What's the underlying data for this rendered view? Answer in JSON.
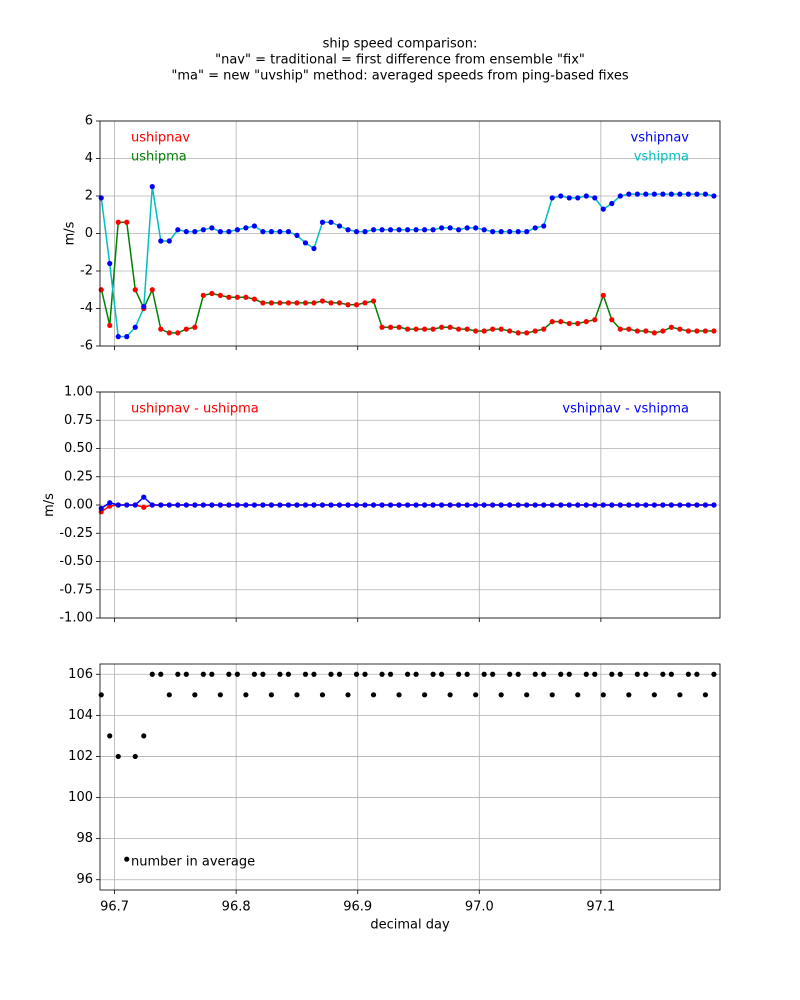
{
  "chart_data": [
    {
      "type": "line",
      "title": [
        "ship speed comparison:",
        "\"nav\" = traditional = first difference from ensemble \"fix\"",
        "\"ma\" = new \"uvship\" method: averaged speeds from ping-based fixes"
      ],
      "ylabel": "m/s",
      "grid": true,
      "legend": true,
      "xlim": [
        96.688,
        97.198
      ],
      "xticks": [
        96.7,
        96.8,
        96.9,
        97,
        97.1
      ],
      "ylim": [
        -6,
        6
      ],
      "yticks": [
        -6,
        -4,
        -2,
        0,
        2,
        4,
        6
      ],
      "x": [
        96.689,
        96.696,
        96.703,
        96.71,
        96.717,
        96.724,
        96.731,
        96.738,
        96.745,
        96.752,
        96.759,
        96.766,
        96.773,
        96.78,
        96.787,
        96.794,
        96.801,
        96.808,
        96.815,
        96.822,
        96.829,
        96.836,
        96.843,
        96.85,
        96.857,
        96.864,
        96.871,
        96.878,
        96.885,
        96.892,
        96.899,
        96.906,
        96.913,
        96.92,
        96.927,
        96.934,
        96.941,
        96.948,
        96.955,
        96.962,
        96.969,
        96.976,
        96.983,
        96.99,
        96.997,
        97.004,
        97.011,
        97.018,
        97.025,
        97.032,
        97.039,
        97.046,
        97.053,
        97.06,
        97.067,
        97.074,
        97.081,
        97.088,
        97.095,
        97.102,
        97.109,
        97.116,
        97.123,
        97.13,
        97.137,
        97.144,
        97.151,
        97.158,
        97.165,
        97.172,
        97.179,
        97.186,
        97.193
      ],
      "series": [
        {
          "name": "ushipnav",
          "color": "#ff0000",
          "marker": true,
          "line": false,
          "values": [
            -3.0,
            -4.9,
            0.6,
            0.6,
            -3.0,
            -4.0,
            -3.0,
            -5.1,
            -5.3,
            -5.3,
            -5.1,
            -5.0,
            -3.3,
            -3.2,
            -3.3,
            -3.4,
            -3.4,
            -3.4,
            -3.5,
            -3.7,
            -3.7,
            -3.7,
            -3.7,
            -3.7,
            -3.7,
            -3.7,
            -3.6,
            -3.7,
            -3.7,
            -3.8,
            -3.8,
            -3.7,
            -3.6,
            -5.0,
            -5.0,
            -5.0,
            -5.1,
            -5.1,
            -5.1,
            -5.1,
            -5.0,
            -5.0,
            -5.1,
            -5.1,
            -5.2,
            -5.2,
            -5.1,
            -5.1,
            -5.2,
            -5.3,
            -5.3,
            -5.2,
            -5.1,
            -4.7,
            -4.7,
            -4.8,
            -4.8,
            -4.7,
            -4.6,
            -3.3,
            -4.6,
            -5.1,
            -5.1,
            -5.2,
            -5.2,
            -5.3,
            -5.2,
            -5.0,
            -5.1,
            -5.2,
            -5.2,
            -5.2,
            -5.2
          ]
        },
        {
          "name": "ushipma",
          "color": "#008000",
          "marker": false,
          "line": true,
          "values": [
            -2.94,
            -4.89,
            0.6,
            0.6,
            -3.0,
            -3.98,
            -3.0,
            -5.1,
            -5.3,
            -5.3,
            -5.1,
            -5.0,
            -3.3,
            -3.2,
            -3.3,
            -3.4,
            -3.4,
            -3.4,
            -3.5,
            -3.7,
            -3.7,
            -3.7,
            -3.7,
            -3.7,
            -3.7,
            -3.7,
            -3.6,
            -3.7,
            -3.7,
            -3.8,
            -3.8,
            -3.7,
            -3.6,
            -5.0,
            -5.0,
            -5.0,
            -5.1,
            -5.1,
            -5.1,
            -5.1,
            -5.0,
            -5.0,
            -5.1,
            -5.1,
            -5.2,
            -5.2,
            -5.1,
            -5.1,
            -5.2,
            -5.3,
            -5.3,
            -5.2,
            -5.1,
            -4.7,
            -4.7,
            -4.8,
            -4.8,
            -4.7,
            -4.6,
            -3.3,
            -4.6,
            -5.1,
            -5.1,
            -5.2,
            -5.2,
            -5.3,
            -5.2,
            -5.0,
            -5.1,
            -5.2,
            -5.2,
            -5.2,
            -5.2
          ]
        },
        {
          "name": "vshipnav",
          "color": "#0000ff",
          "marker": true,
          "line": false,
          "values": [
            1.9,
            -1.6,
            -5.5,
            -5.5,
            -5.0,
            -3.9,
            2.5,
            -0.4,
            -0.4,
            0.2,
            0.1,
            0.1,
            0.2,
            0.3,
            0.1,
            0.1,
            0.2,
            0.3,
            0.4,
            0.1,
            0.1,
            0.1,
            0.1,
            -0.1,
            -0.5,
            -0.8,
            0.6,
            0.6,
            0.4,
            0.2,
            0.1,
            0.1,
            0.2,
            0.2,
            0.2,
            0.2,
            0.2,
            0.2,
            0.2,
            0.2,
            0.3,
            0.3,
            0.2,
            0.3,
            0.3,
            0.2,
            0.1,
            0.1,
            0.1,
            0.1,
            0.1,
            0.3,
            0.4,
            1.9,
            2.0,
            1.9,
            1.9,
            2.0,
            1.9,
            1.3,
            1.6,
            2.0,
            2.1,
            2.1,
            2.1,
            2.1,
            2.1,
            2.1,
            2.1,
            2.1,
            2.1,
            2.1,
            2.0
          ]
        },
        {
          "name": "vshipma",
          "color": "#00bfbf",
          "marker": false,
          "line": true,
          "values": [
            1.93,
            -1.62,
            -5.5,
            -5.5,
            -5.0,
            -3.97,
            2.5,
            -0.4,
            -0.4,
            0.2,
            0.1,
            0.1,
            0.2,
            0.3,
            0.1,
            0.1,
            0.2,
            0.3,
            0.4,
            0.1,
            0.1,
            0.1,
            0.1,
            -0.1,
            -0.5,
            -0.8,
            0.6,
            0.6,
            0.4,
            0.2,
            0.1,
            0.1,
            0.2,
            0.2,
            0.2,
            0.2,
            0.2,
            0.2,
            0.2,
            0.2,
            0.3,
            0.3,
            0.2,
            0.3,
            0.3,
            0.2,
            0.1,
            0.1,
            0.1,
            0.1,
            0.1,
            0.3,
            0.4,
            1.9,
            2.0,
            1.9,
            1.9,
            2.0,
            1.9,
            1.3,
            1.6,
            2.0,
            2.1,
            2.1,
            2.1,
            2.1,
            2.1,
            2.1,
            2.1,
            2.1,
            2.1,
            2.1,
            2.0
          ]
        }
      ]
    },
    {
      "type": "line",
      "ylabel": "m/s",
      "grid": true,
      "legend": true,
      "xlim": [
        96.688,
        97.198
      ],
      "xticks": [
        96.7,
        96.8,
        96.9,
        97,
        97.1
      ],
      "ylim": [
        -1,
        1
      ],
      "yticks": [
        {
          "value": -1,
          "label": "-1.00"
        },
        {
          "value": -0.75,
          "label": "-0.75"
        },
        {
          "value": -0.5,
          "label": "-0.50"
        },
        {
          "value": -0.25,
          "label": "-0.25"
        },
        {
          "value": 0,
          "label": "0.00"
        },
        {
          "value": 0.25,
          "label": "0.25"
        },
        {
          "value": 0.5,
          "label": "0.50"
        },
        {
          "value": 0.75,
          "label": "0.75"
        },
        {
          "value": 1,
          "label": "1.00"
        }
      ],
      "x": [
        96.689,
        96.696,
        96.703,
        96.71,
        96.717,
        96.724,
        96.731,
        96.738,
        96.745,
        96.752,
        96.759,
        96.766,
        96.773,
        96.78,
        96.787,
        96.794,
        96.801,
        96.808,
        96.815,
        96.822,
        96.829,
        96.836,
        96.843,
        96.85,
        96.857,
        96.864,
        96.871,
        96.878,
        96.885,
        96.892,
        96.899,
        96.906,
        96.913,
        96.92,
        96.927,
        96.934,
        96.941,
        96.948,
        96.955,
        96.962,
        96.969,
        96.976,
        96.983,
        96.99,
        96.997,
        97.004,
        97.011,
        97.018,
        97.025,
        97.032,
        97.039,
        97.046,
        97.053,
        97.06,
        97.067,
        97.074,
        97.081,
        97.088,
        97.095,
        97.102,
        97.109,
        97.116,
        97.123,
        97.13,
        97.137,
        97.144,
        97.151,
        97.158,
        97.165,
        97.172,
        97.179,
        97.186,
        97.193
      ],
      "series": [
        {
          "name": "ushipnav - ushipma",
          "color": "#ff0000",
          "marker": true,
          "line": true,
          "values": [
            -0.06,
            -0.01,
            0,
            0,
            0,
            -0.02,
            0,
            0,
            0,
            0,
            0,
            0,
            0,
            0,
            0,
            0,
            0,
            0,
            0,
            0,
            0,
            0,
            0,
            0,
            0,
            0,
            0,
            0,
            0,
            0,
            0,
            0,
            0,
            0,
            0,
            0,
            0,
            0,
            0,
            0,
            0,
            0,
            0,
            0,
            0,
            0,
            0,
            0,
            0,
            0,
            0,
            0,
            0,
            0,
            0,
            0,
            0,
            0,
            0,
            0,
            0,
            0,
            0,
            0,
            0,
            0,
            0,
            0,
            0,
            0,
            0,
            0,
            0
          ]
        },
        {
          "name": "vshipnav - vshipma",
          "color": "#0000ff",
          "marker": true,
          "line": true,
          "values": [
            -0.03,
            0.02,
            0,
            0,
            0,
            0.07,
            0,
            0,
            0,
            0,
            0,
            0,
            0,
            0,
            0,
            0,
            0,
            0,
            0,
            0,
            0,
            0,
            0,
            0,
            0,
            0,
            0,
            0,
            0,
            0,
            0,
            0,
            0,
            0,
            0,
            0,
            0,
            0,
            0,
            0,
            0,
            0,
            0,
            0,
            0,
            0,
            0,
            0,
            0,
            0,
            0,
            0,
            0,
            0,
            0,
            0,
            0,
            0,
            0,
            0,
            0,
            0,
            0,
            0,
            0,
            0,
            0,
            0,
            0,
            0,
            0,
            0,
            0
          ]
        }
      ]
    },
    {
      "type": "line",
      "xlabel": "decimal day",
      "annotation": "number in average",
      "grid": true,
      "legend": false,
      "xlim": [
        96.688,
        97.198
      ],
      "xticks": [
        96.7,
        96.8,
        96.9,
        {
          "value": 97,
          "label": "97.0"
        },
        97.1
      ],
      "ylim": [
        95.5,
        106.5
      ],
      "yticks": [
        96,
        98,
        100,
        102,
        104,
        106
      ],
      "x": [
        96.689,
        96.696,
        96.703,
        96.71,
        96.717,
        96.724,
        96.731,
        96.738,
        96.745,
        96.752,
        96.759,
        96.766,
        96.773,
        96.78,
        96.787,
        96.794,
        96.801,
        96.808,
        96.815,
        96.822,
        96.829,
        96.836,
        96.843,
        96.85,
        96.857,
        96.864,
        96.871,
        96.878,
        96.885,
        96.892,
        96.899,
        96.906,
        96.913,
        96.92,
        96.927,
        96.934,
        96.941,
        96.948,
        96.955,
        96.962,
        96.969,
        96.976,
        96.983,
        96.99,
        96.997,
        97.004,
        97.011,
        97.018,
        97.025,
        97.032,
        97.039,
        97.046,
        97.053,
        97.06,
        97.067,
        97.074,
        97.081,
        97.088,
        97.095,
        97.102,
        97.109,
        97.116,
        97.123,
        97.13,
        97.137,
        97.144,
        97.151,
        97.158,
        97.165,
        97.172,
        97.179,
        97.186,
        97.193
      ],
      "series": [
        {
          "color": "#000000",
          "marker": true,
          "line": false,
          "values": [
            105,
            103,
            102,
            97,
            102,
            103,
            106,
            106,
            105,
            106,
            106,
            105,
            106,
            106,
            105,
            106,
            106,
            105,
            106,
            106,
            105,
            106,
            106,
            105,
            106,
            106,
            105,
            106,
            106,
            105,
            106,
            106,
            105,
            106,
            106,
            105,
            106,
            106,
            105,
            106,
            106,
            105,
            106,
            106,
            105,
            106,
            106,
            105,
            106,
            106,
            105,
            106,
            106,
            105,
            106,
            106,
            105,
            106,
            106,
            105,
            106,
            106,
            105,
            106,
            106,
            105,
            106,
            106,
            105,
            106,
            106,
            105,
            106
          ]
        }
      ]
    }
  ]
}
